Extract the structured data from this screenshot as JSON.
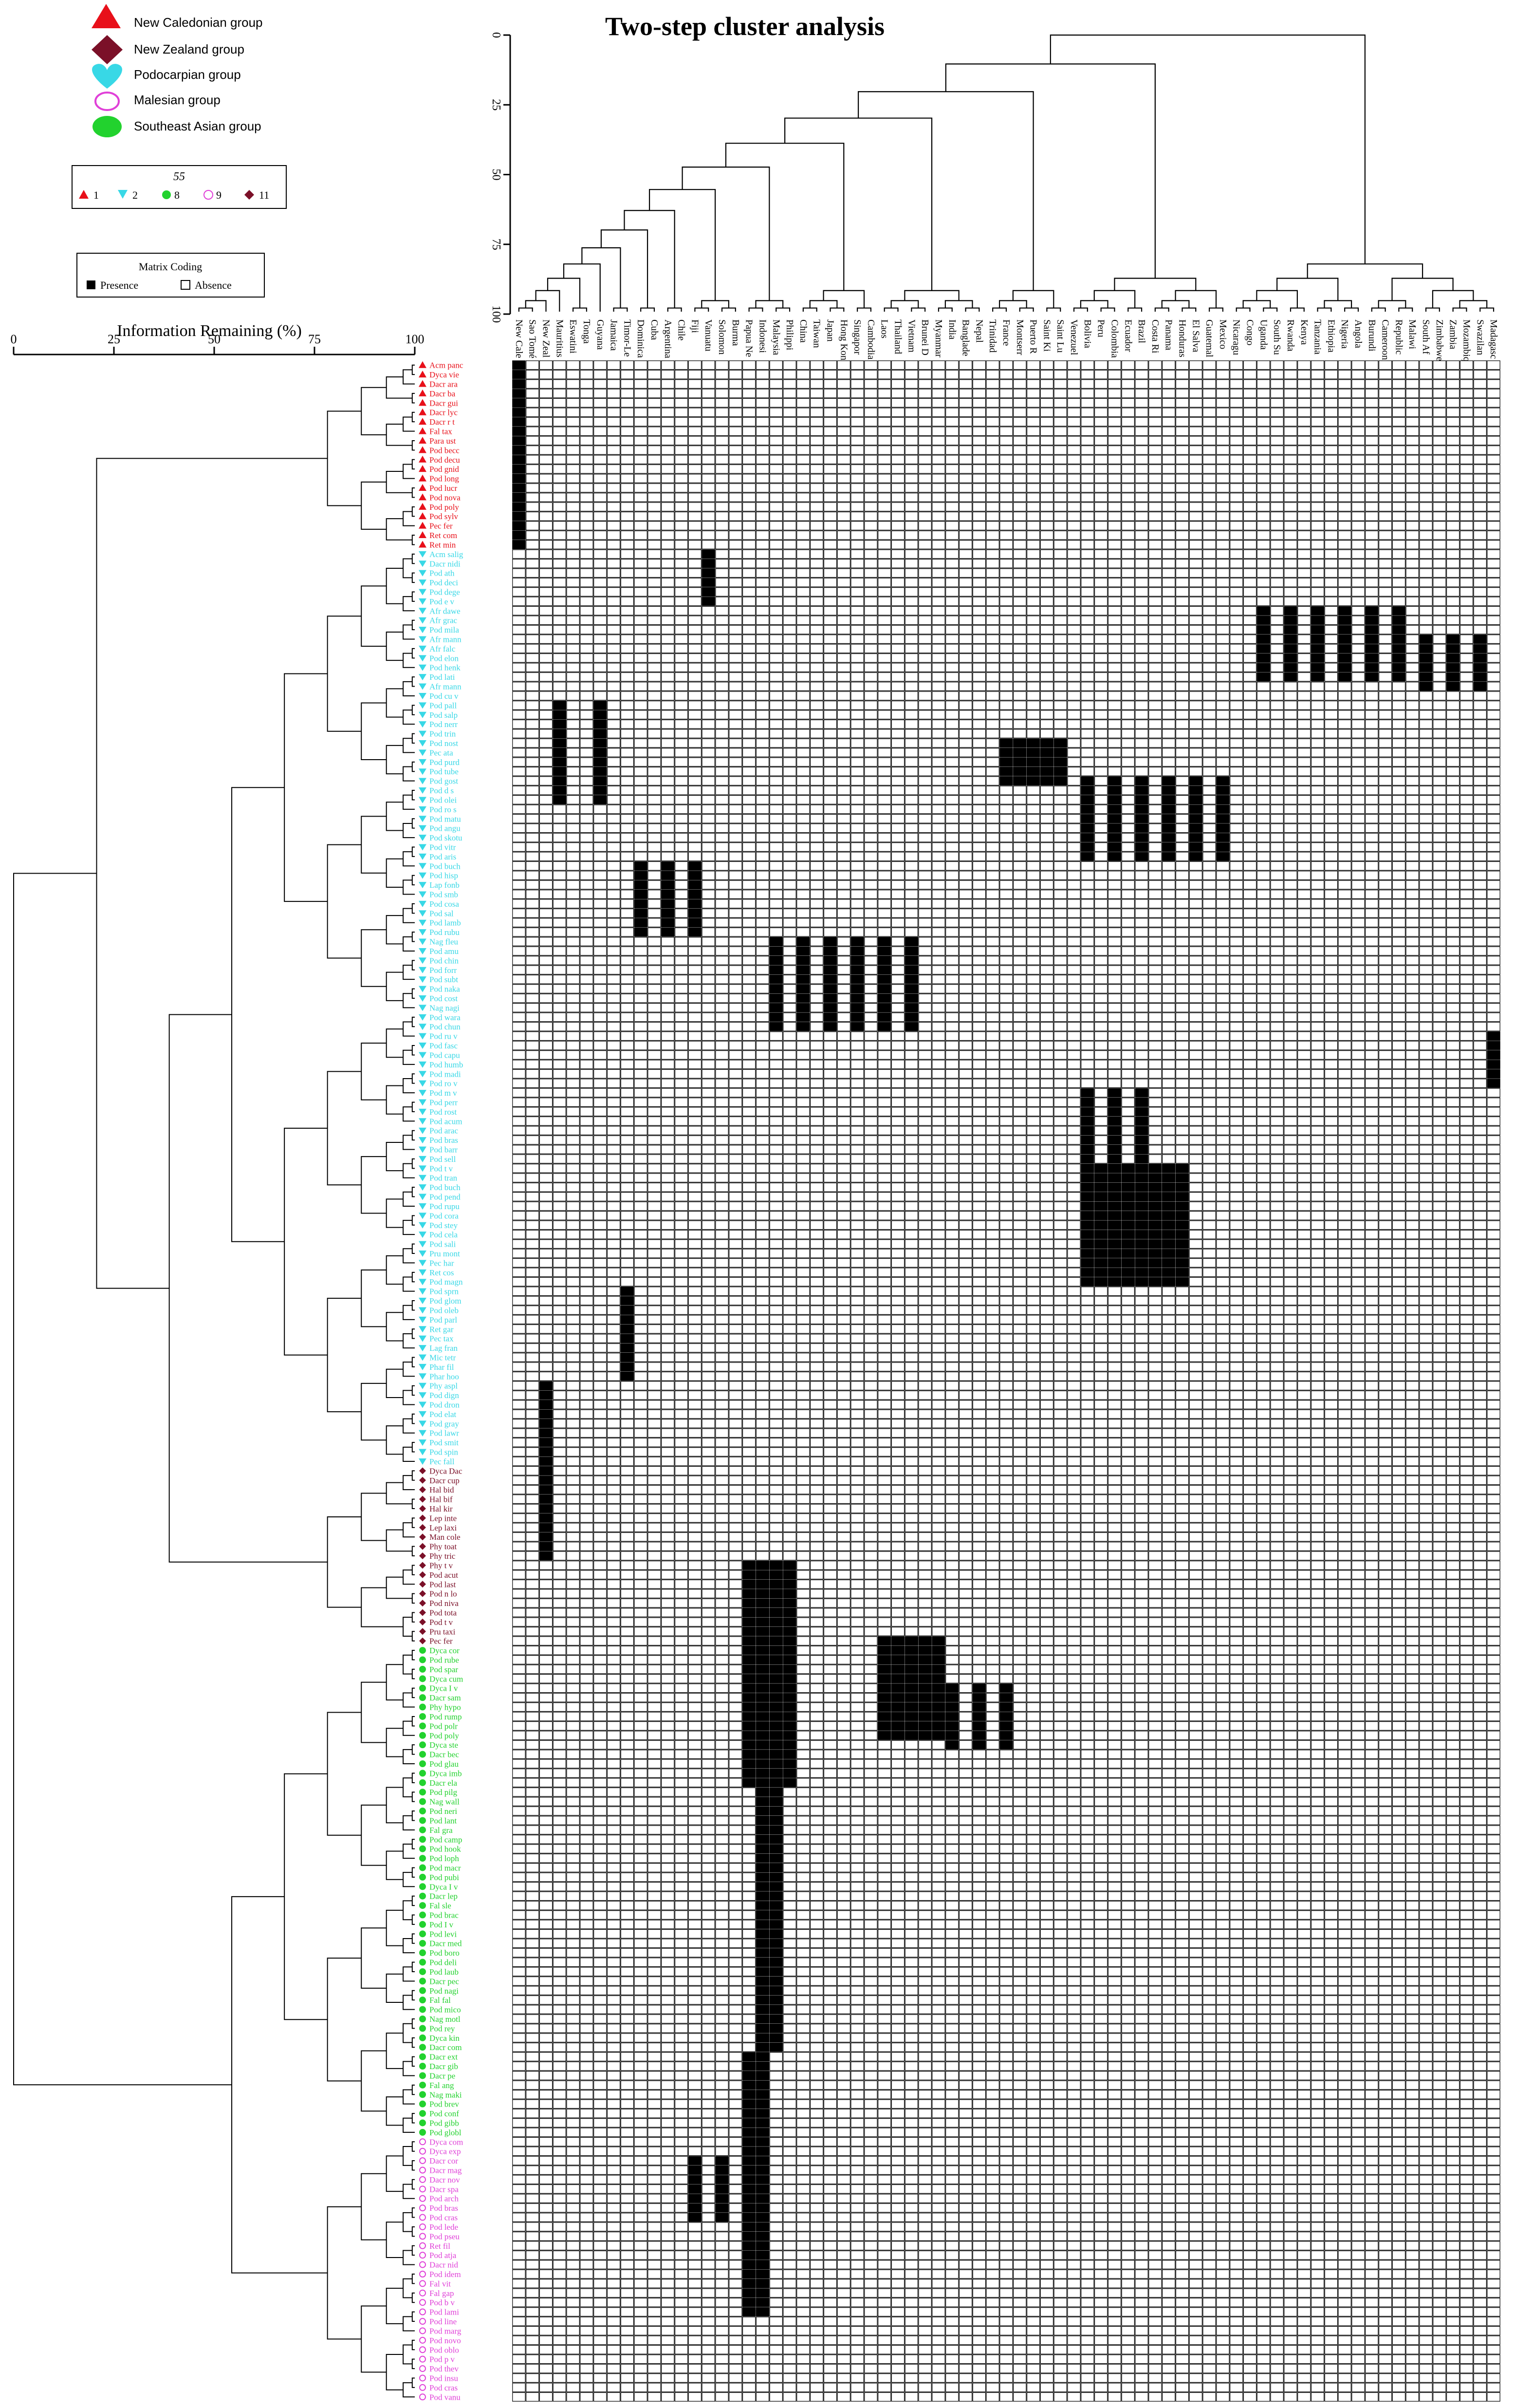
{
  "title": "Two-step cluster analysis",
  "legend": {
    "groups": [
      {
        "name": "New Caledonian group",
        "shape": "triangle",
        "color": "#e8101a"
      },
      {
        "name": "New Zealand group",
        "shape": "diamond",
        "color": "#7b1028"
      },
      {
        "name": "Podocarpian group",
        "shape": "heart",
        "color": "#38d8e6"
      },
      {
        "name": "Malesian group",
        "shape": "ring",
        "color": "#e040d8"
      },
      {
        "name": "Southeast Asian group",
        "shape": "ellipse",
        "color": "#22d22e"
      }
    ],
    "cluster_box": {
      "header": "55",
      "items": [
        {
          "label": "1",
          "shape": "triangle",
          "color": "#e8101a"
        },
        {
          "label": "2",
          "shape": "tri-down",
          "color": "#38d8e6"
        },
        {
          "label": "8",
          "shape": "circle",
          "color": "#22d22e"
        },
        {
          "label": "9",
          "shape": "ring",
          "color": "#e040d8"
        },
        {
          "label": "11",
          "shape": "diamond",
          "color": "#7b1028"
        }
      ]
    },
    "matrix_box": {
      "title": "Matrix Coding",
      "presence": "Presence",
      "absence": "Absence"
    }
  },
  "left_axis": {
    "title": "Information Remaining (%)",
    "ticks": [
      "0",
      "25",
      "50",
      "75",
      "100"
    ]
  },
  "top_axis": {
    "ticks": [
      "0",
      "25",
      "50",
      "75",
      "100"
    ]
  },
  "regions": [
    "New Cale",
    "Sao Tomé",
    "New Zeal",
    "Mauritius",
    "Eswatini",
    "Tonga",
    "Guyana",
    "Jamaica",
    "Timor-Le",
    "Dominica",
    "Cuba",
    "Argentina",
    "Chile",
    "Fiji",
    "Vanuatu",
    "Solomon",
    "Burma",
    "Papua Ne",
    "Indonesi",
    "Malaysia",
    "Philippi",
    "China",
    "Taiwan",
    "Japan",
    "Hong Kong",
    "Singapor",
    "Cambodia",
    "Laos",
    "Thailand",
    "Vietnam",
    "Brunei D",
    "Myanmar",
    "India",
    "Banglade",
    "Nepal",
    "Trinidad",
    "France",
    "Montserr",
    "Puerto R",
    "Saint Ki",
    "Saint Lu",
    "Venezuel",
    "Bolivia",
    "Peru",
    "Colombia",
    "Ecuador",
    "Brazil",
    "Costa Ri",
    "Panama",
    "Honduras",
    "El Salva",
    "Guatemal",
    "Mexico",
    "Nicaragu",
    "Congo",
    "Uganda",
    "South Su",
    "Rwanda",
    "Kenya",
    "Tanzania",
    "Ethiopia",
    "Nigeria",
    "Angola",
    "Burundi",
    "Cameroon",
    "Republic",
    "Malawi",
    "South Af",
    "Zimbabwe",
    "Zambia",
    "Mozambiq",
    "Swazilan",
    "Madagasc"
  ],
  "species": [
    {
      "name": "Acm panc",
      "g": "nc"
    },
    {
      "name": "Dyca vie",
      "g": "nc"
    },
    {
      "name": "Dacr ara",
      "g": "nc"
    },
    {
      "name": "Dacr ba",
      "g": "nc"
    },
    {
      "name": "Dacr gui",
      "g": "nc"
    },
    {
      "name": "Dacr lyc",
      "g": "nc"
    },
    {
      "name": "Dacr r t",
      "g": "nc"
    },
    {
      "name": "Fal  tax",
      "g": "nc"
    },
    {
      "name": "Para ust",
      "g": "nc"
    },
    {
      "name": "Pod becc",
      "g": "nc"
    },
    {
      "name": "Pod decu",
      "g": "nc"
    },
    {
      "name": "Pod gnid",
      "g": "nc"
    },
    {
      "name": "Pod long",
      "g": "nc"
    },
    {
      "name": "Pod lucr",
      "g": "nc"
    },
    {
      "name": "Pod nova",
      "g": "nc"
    },
    {
      "name": "Pod poly",
      "g": "nc"
    },
    {
      "name": "Pod sylv",
      "g": "nc"
    },
    {
      "name": "Pec  fer",
      "g": "nc"
    },
    {
      "name": "Ret  com",
      "g": "nc"
    },
    {
      "name": "Ret  min",
      "g": "nc"
    },
    {
      "name": "Acm salig",
      "g": "po"
    },
    {
      "name": "Dacr nidi",
      "g": "po"
    },
    {
      "name": "Pod ath",
      "g": "po"
    },
    {
      "name": "Pod deci",
      "g": "po"
    },
    {
      "name": "Pod dege",
      "g": "po"
    },
    {
      "name": "Pod e v",
      "g": "po"
    },
    {
      "name": "Afr dawe",
      "g": "po"
    },
    {
      "name": "Afr grac",
      "g": "po"
    },
    {
      "name": "Pod mila",
      "g": "po"
    },
    {
      "name": "Afr mann",
      "g": "po"
    },
    {
      "name": "Afr falc",
      "g": "po"
    },
    {
      "name": "Pod elon",
      "g": "po"
    },
    {
      "name": "Pod henk",
      "g": "po"
    },
    {
      "name": "Pod lati",
      "g": "po"
    },
    {
      "name": "Afr mann",
      "g": "po"
    },
    {
      "name": "Pod cu v",
      "g": "po"
    },
    {
      "name": "Pod pall",
      "g": "po"
    },
    {
      "name": "Pod salp",
      "g": "po"
    },
    {
      "name": "Pod nerr",
      "g": "po"
    },
    {
      "name": "Pod trin",
      "g": "po"
    },
    {
      "name": "Pod nost",
      "g": "po"
    },
    {
      "name": "Pec  ata",
      "g": "po"
    },
    {
      "name": "Pod purd",
      "g": "po"
    },
    {
      "name": "Pod tube",
      "g": "po"
    },
    {
      "name": "Pod gost",
      "g": "po"
    },
    {
      "name": "Pod d s",
      "g": "po"
    },
    {
      "name": "Pod olei",
      "g": "po"
    },
    {
      "name": "Pod ro s",
      "g": "po"
    },
    {
      "name": "Pod matu",
      "g": "po"
    },
    {
      "name": "Pod angu",
      "g": "po"
    },
    {
      "name": "Pod skotu",
      "g": "po"
    },
    {
      "name": "Pod vitr",
      "g": "po"
    },
    {
      "name": "Pod aris",
      "g": "po"
    },
    {
      "name": "Pod buch",
      "g": "po"
    },
    {
      "name": "Pod hisp",
      "g": "po"
    },
    {
      "name": "Lap fonb",
      "g": "po"
    },
    {
      "name": "Pod smb",
      "g": "po"
    },
    {
      "name": "Pod cosa",
      "g": "po"
    },
    {
      "name": "Pod sal",
      "g": "po"
    },
    {
      "name": "Pod lamb",
      "g": "po"
    },
    {
      "name": "Pod rubu",
      "g": "po"
    },
    {
      "name": "Nag fleu",
      "g": "po"
    },
    {
      "name": "Pod amu",
      "g": "po"
    },
    {
      "name": "Pod chin",
      "g": "po"
    },
    {
      "name": "Pod forr",
      "g": "po"
    },
    {
      "name": "Pod subt",
      "g": "po"
    },
    {
      "name": "Pod naka",
      "g": "po"
    },
    {
      "name": "Pod cost",
      "g": "po"
    },
    {
      "name": "Nag nagi",
      "g": "po"
    },
    {
      "name": "Pod wara",
      "g": "po"
    },
    {
      "name": "Pod chun",
      "g": "po"
    },
    {
      "name": "Pod ru v",
      "g": "po"
    },
    {
      "name": "Pod fasc",
      "g": "po"
    },
    {
      "name": "Pod capu",
      "g": "po"
    },
    {
      "name": "Pod humb",
      "g": "po"
    },
    {
      "name": "Pod madi",
      "g": "po"
    },
    {
      "name": "Pod ro v",
      "g": "po"
    },
    {
      "name": "Pod m v",
      "g": "po"
    },
    {
      "name": "Pod perr",
      "g": "po"
    },
    {
      "name": "Pod rost",
      "g": "po"
    },
    {
      "name": "Pod acum",
      "g": "po"
    },
    {
      "name": "Pod arac",
      "g": "po"
    },
    {
      "name": "Pod bras",
      "g": "po"
    },
    {
      "name": "Pod barr",
      "g": "po"
    },
    {
      "name": "Pod sell",
      "g": "po"
    },
    {
      "name": "Pod t v",
      "g": "po"
    },
    {
      "name": "Pod tran",
      "g": "po"
    },
    {
      "name": "Pod buch",
      "g": "po"
    },
    {
      "name": "Pod pend",
      "g": "po"
    },
    {
      "name": "Pod rupu",
      "g": "po"
    },
    {
      "name": "Pod cora",
      "g": "po"
    },
    {
      "name": "Pod stey",
      "g": "po"
    },
    {
      "name": "Pod cela",
      "g": "po"
    },
    {
      "name": "Pod sali",
      "g": "po"
    },
    {
      "name": "Pru mont",
      "g": "po"
    },
    {
      "name": "Pec  har",
      "g": "po"
    },
    {
      "name": "Ret  cos",
      "g": "po"
    },
    {
      "name": "Pod magn",
      "g": "po"
    },
    {
      "name": "Pod sprn",
      "g": "po"
    },
    {
      "name": "Pod glom",
      "g": "po"
    },
    {
      "name": "Pod oleb",
      "g": "po"
    },
    {
      "name": "Pod parl",
      "g": "po"
    },
    {
      "name": "Ret  gar",
      "g": "po"
    },
    {
      "name": "Pec  tax",
      "g": "po"
    },
    {
      "name": "Lag fran",
      "g": "po"
    },
    {
      "name": "Mic tetr",
      "g": "po"
    },
    {
      "name": "Phar fil",
      "g": "po"
    },
    {
      "name": "Phar hoo",
      "g": "po"
    },
    {
      "name": "Phy aspl",
      "g": "po"
    },
    {
      "name": "Pod dign",
      "g": "po"
    },
    {
      "name": "Pod dron",
      "g": "po"
    },
    {
      "name": "Pod elat",
      "g": "po"
    },
    {
      "name": "Pod gray",
      "g": "po"
    },
    {
      "name": "Pod lawr",
      "g": "po"
    },
    {
      "name": "Pod smit",
      "g": "po"
    },
    {
      "name": "Pod spin",
      "g": "po"
    },
    {
      "name": "Pec  fall",
      "g": "po"
    },
    {
      "name": "Dyca Dac",
      "g": "nz"
    },
    {
      "name": "Dacr cup",
      "g": "nz"
    },
    {
      "name": "Hal  bid",
      "g": "nz"
    },
    {
      "name": "Hal  bif",
      "g": "nz"
    },
    {
      "name": "Hal  kir",
      "g": "nz"
    },
    {
      "name": "Lep inte",
      "g": "nz"
    },
    {
      "name": "Lep laxi",
      "g": "nz"
    },
    {
      "name": "Man cole",
      "g": "nz"
    },
    {
      "name": "Phy toat",
      "g": "nz"
    },
    {
      "name": "Phy tric",
      "g": "nz"
    },
    {
      "name": "Phy t v",
      "g": "nz"
    },
    {
      "name": "Pod acut",
      "g": "nz"
    },
    {
      "name": "Pod last",
      "g": "nz"
    },
    {
      "name": "Pod n lo",
      "g": "nz"
    },
    {
      "name": "Pod niva",
      "g": "nz"
    },
    {
      "name": "Pod tota",
      "g": "nz"
    },
    {
      "name": "Pod t v",
      "g": "nz"
    },
    {
      "name": "Pru taxi",
      "g": "nz"
    },
    {
      "name": "Pec  fer",
      "g": "nz"
    },
    {
      "name": "Dyca cor",
      "g": "se"
    },
    {
      "name": "Pod rube",
      "g": "se"
    },
    {
      "name": "Pod spar",
      "g": "se"
    },
    {
      "name": "Dyca cum",
      "g": "se"
    },
    {
      "name": "Dyca I v",
      "g": "se"
    },
    {
      "name": "Dacr sam",
      "g": "se"
    },
    {
      "name": "Phy hypo",
      "g": "se"
    },
    {
      "name": "Pod rump",
      "g": "se"
    },
    {
      "name": "Pod polr",
      "g": "se"
    },
    {
      "name": "Pod poly",
      "g": "se"
    },
    {
      "name": "Dyca ste",
      "g": "se"
    },
    {
      "name": "Dacr bec",
      "g": "se"
    },
    {
      "name": "Pod glau",
      "g": "se"
    },
    {
      "name": "Dyca imb",
      "g": "se"
    },
    {
      "name": "Dacr ela",
      "g": "se"
    },
    {
      "name": "Pod pilg",
      "g": "se"
    },
    {
      "name": "Nag wall",
      "g": "se"
    },
    {
      "name": "Pod neri",
      "g": "se"
    },
    {
      "name": "Pod lant",
      "g": "se"
    },
    {
      "name": "Fal  gra",
      "g": "se"
    },
    {
      "name": "Pod camp",
      "g": "se"
    },
    {
      "name": "Pod hook",
      "g": "se"
    },
    {
      "name": "Pod loph",
      "g": "se"
    },
    {
      "name": "Pod macr",
      "g": "se"
    },
    {
      "name": "Pod pubi",
      "g": "se"
    },
    {
      "name": "Dyca I v",
      "g": "se"
    },
    {
      "name": "Dacr lep",
      "g": "se"
    },
    {
      "name": "Fal  sle",
      "g": "se"
    },
    {
      "name": "Pod brac",
      "g": "se"
    },
    {
      "name": "Pod I v",
      "g": "se"
    },
    {
      "name": "Pod levi",
      "g": "se"
    },
    {
      "name": "Dacr med",
      "g": "se"
    },
    {
      "name": "Pod boro",
      "g": "se"
    },
    {
      "name": "Pod deli",
      "g": "se"
    },
    {
      "name": "Pod laub",
      "g": "se"
    },
    {
      "name": "Dacr pec",
      "g": "se"
    },
    {
      "name": "Pod nagi",
      "g": "se"
    },
    {
      "name": "Fal  fal",
      "g": "se"
    },
    {
      "name": "Pod mico",
      "g": "se"
    },
    {
      "name": "Nag motl",
      "g": "se"
    },
    {
      "name": "Pod rey",
      "g": "se"
    },
    {
      "name": "Dyca kin",
      "g": "se"
    },
    {
      "name": "Dacr com",
      "g": "se"
    },
    {
      "name": "Dacr ext",
      "g": "se"
    },
    {
      "name": "Dacr gib",
      "g": "se"
    },
    {
      "name": "Dacr pe",
      "g": "se"
    },
    {
      "name": "Fal  ang",
      "g": "se"
    },
    {
      "name": "Nag maki",
      "g": "se"
    },
    {
      "name": "Pod brev",
      "g": "se"
    },
    {
      "name": "Pod conf",
      "g": "se"
    },
    {
      "name": "Pod gibb",
      "g": "se"
    },
    {
      "name": "Pod globl",
      "g": "se"
    },
    {
      "name": "Dyca com",
      "g": "ma"
    },
    {
      "name": "Dyca exp",
      "g": "ma"
    },
    {
      "name": "Dacr cor",
      "g": "ma"
    },
    {
      "name": "Dacr mag",
      "g": "ma"
    },
    {
      "name": "Dacr nov",
      "g": "ma"
    },
    {
      "name": "Dacr spa",
      "g": "ma"
    },
    {
      "name": "Pod arch",
      "g": "ma"
    },
    {
      "name": "Pod bras",
      "g": "ma"
    },
    {
      "name": "Pod cras",
      "g": "ma"
    },
    {
      "name": "Pod lede",
      "g": "ma"
    },
    {
      "name": "Pod pseu",
      "g": "ma"
    },
    {
      "name": "Ret  fil",
      "g": "ma"
    },
    {
      "name": "Pod atja",
      "g": "ma"
    },
    {
      "name": "Dacr nid",
      "g": "ma"
    },
    {
      "name": "Pod idem",
      "g": "ma"
    },
    {
      "name": "Fal  vit",
      "g": "ma"
    },
    {
      "name": "Fal  gap",
      "g": "ma"
    },
    {
      "name": "Pod b v",
      "g": "ma"
    },
    {
      "name": "Pod lami",
      "g": "ma"
    },
    {
      "name": "Pod line",
      "g": "ma"
    },
    {
      "name": "Pod marg",
      "g": "ma"
    },
    {
      "name": "Pod novo",
      "g": "ma"
    },
    {
      "name": "Pod oblo",
      "g": "ma"
    },
    {
      "name": "Pod p v",
      "g": "ma"
    },
    {
      "name": "Pod thev",
      "g": "ma"
    },
    {
      "name": "Pod insu",
      "g": "ma"
    },
    {
      "name": "Pod cras",
      "g": "ma"
    },
    {
      "name": "Pod vanu",
      "g": "ma"
    }
  ],
  "group_colors": {
    "nc": "#e8101a",
    "po": "#38d8e6",
    "nz": "#7b1028",
    "se": "#22d22e",
    "ma": "#e040d8"
  }
}
